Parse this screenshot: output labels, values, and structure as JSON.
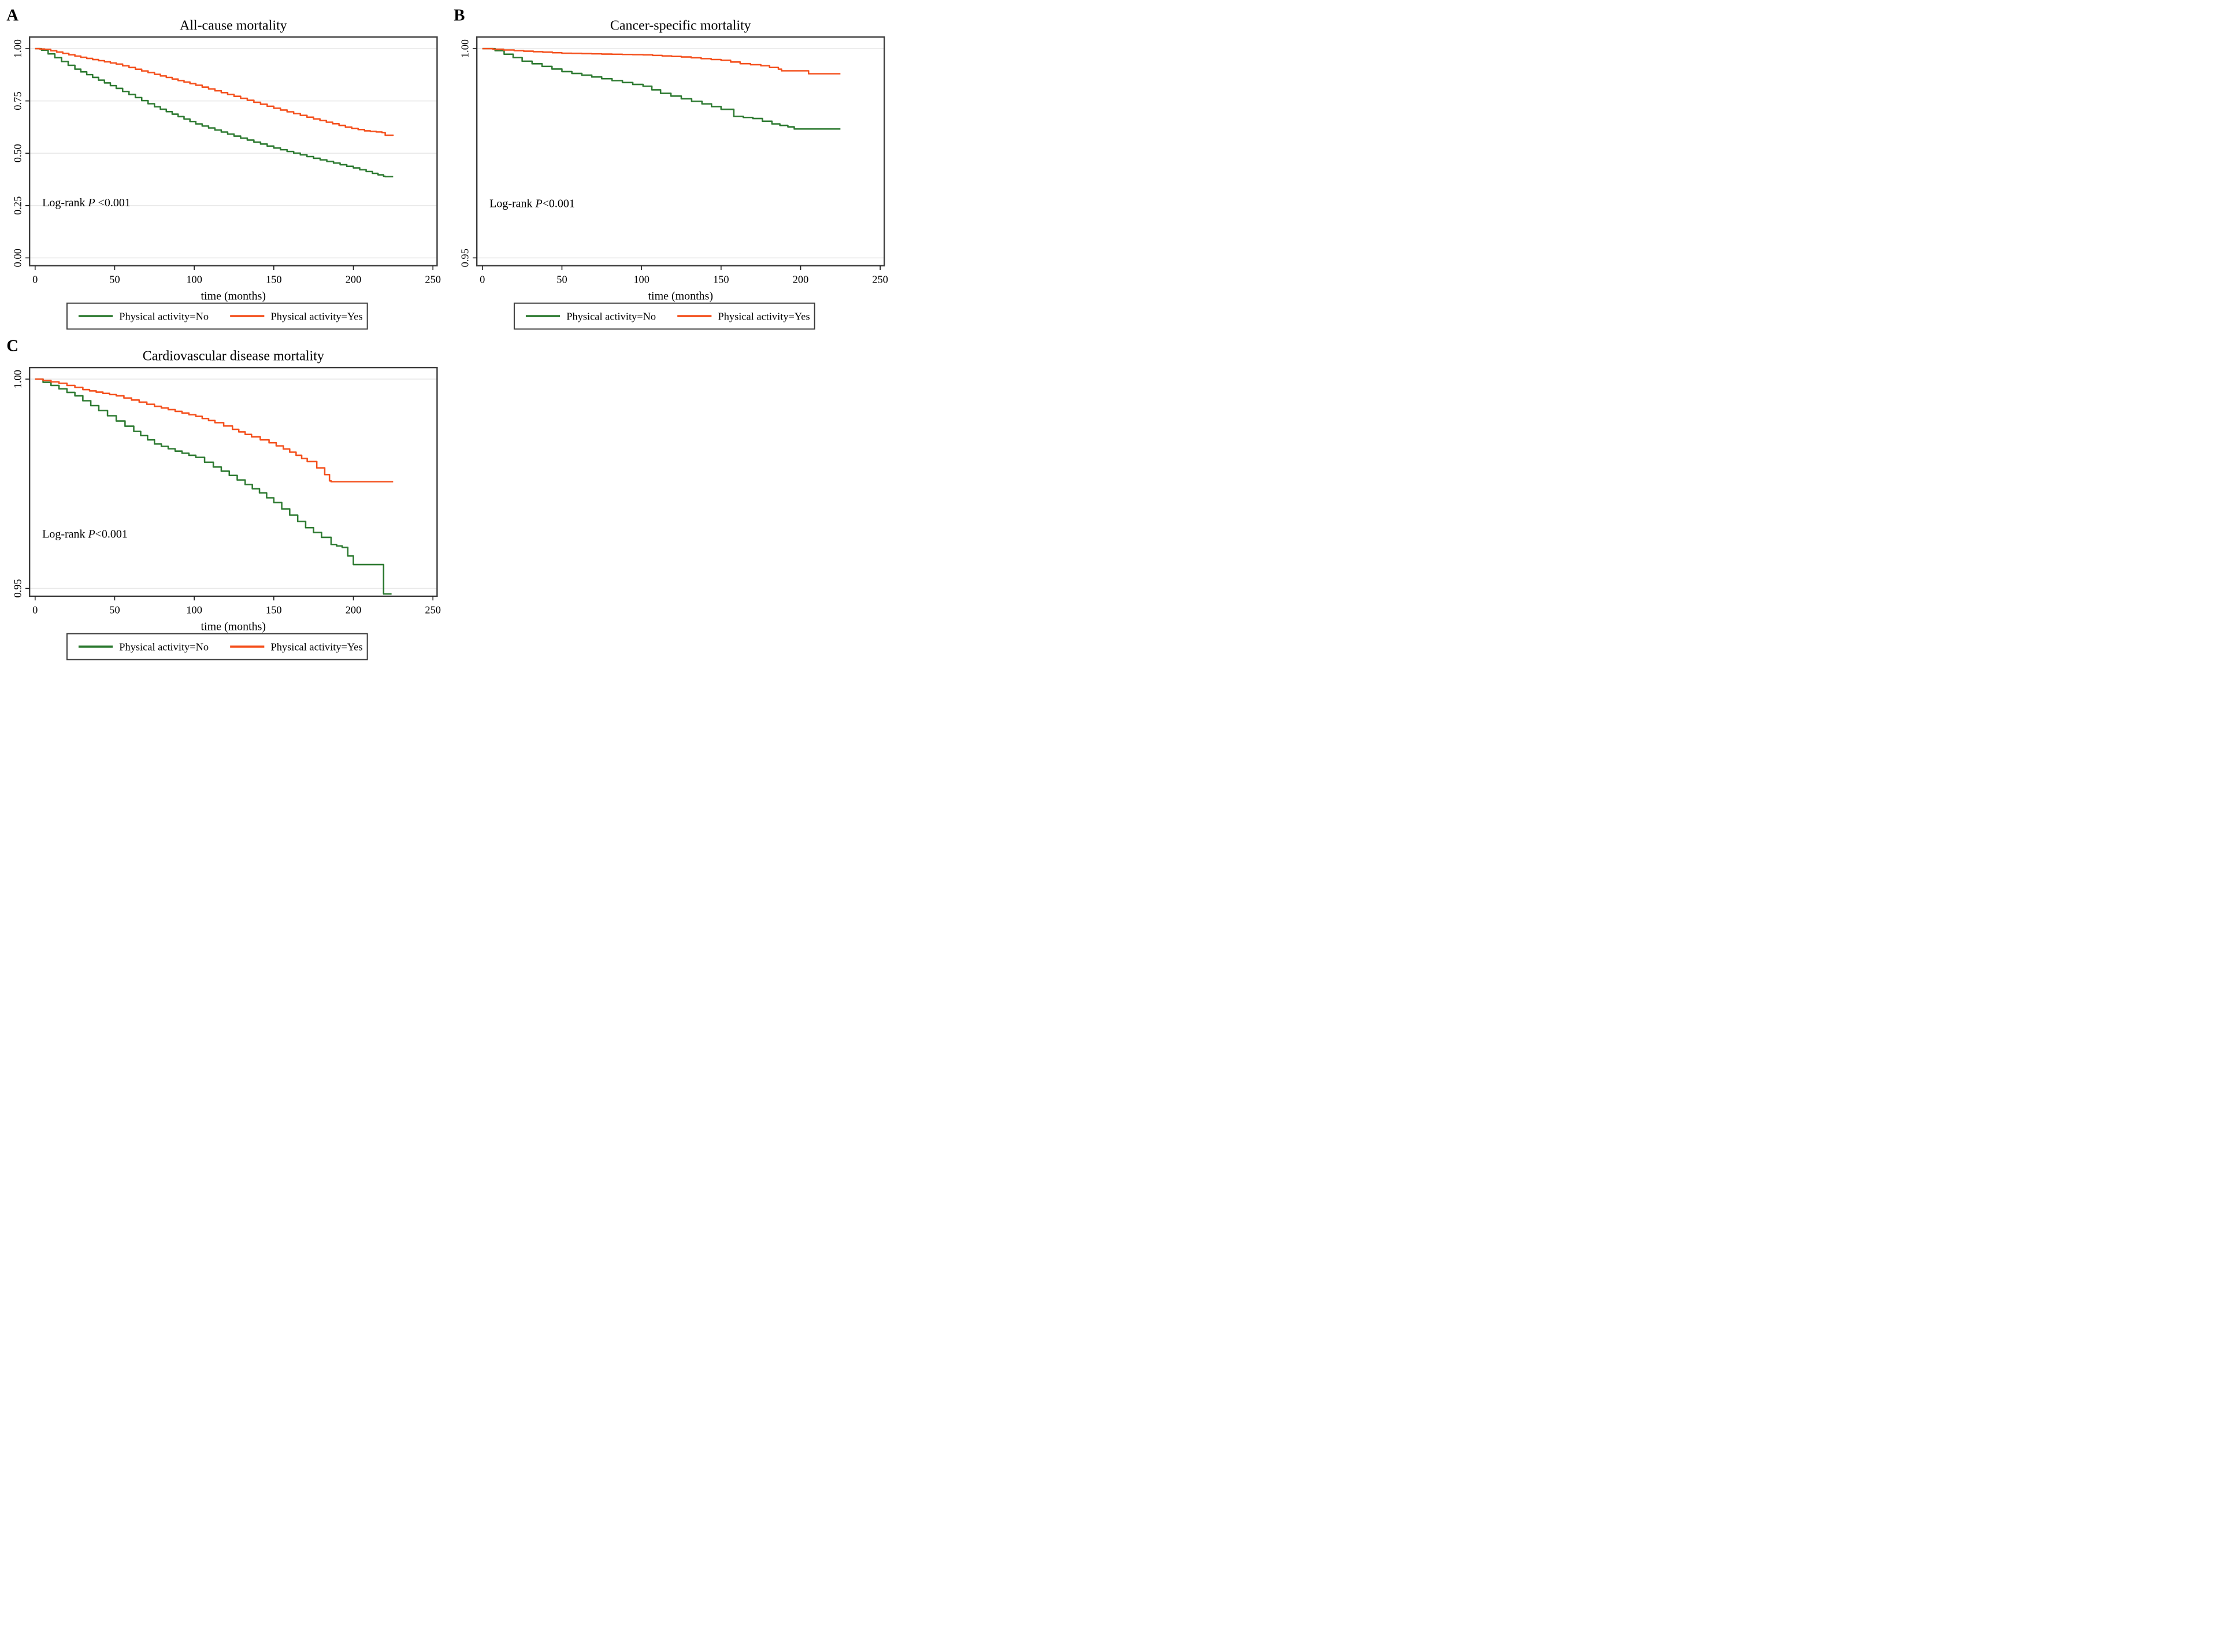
{
  "figure": {
    "background": "#ffffff",
    "colors": {
      "no": "#2d7a31",
      "yes": "#f4501d",
      "grid": "#e9e9e9",
      "frame": "#3c3c3c"
    }
  },
  "chart_data": [
    {
      "letter": "A",
      "type": "step",
      "title": "All-cause mortality",
      "xlabel": "time (months)",
      "xlim": [
        0,
        250
      ],
      "ylim": [
        0,
        1
      ],
      "xticks": [
        {
          "v": 0,
          "label": "0"
        },
        {
          "v": 50,
          "label": "50"
        },
        {
          "v": 100,
          "label": "100"
        },
        {
          "v": 150,
          "label": "150"
        },
        {
          "v": 200,
          "label": "200"
        },
        {
          "v": 250,
          "label": "250"
        }
      ],
      "yticks": [
        {
          "v": 0.0,
          "label": "0.00",
          "grid": true
        },
        {
          "v": 0.25,
          "label": "0.25",
          "grid": true
        },
        {
          "v": 0.5,
          "label": "0.50",
          "grid": true
        },
        {
          "v": 0.75,
          "label": "0.75",
          "grid": true
        },
        {
          "v": 1.0,
          "label": "1.00",
          "grid": true
        }
      ],
      "annotation": {
        "prefix": "Log-rank ",
        "italic": "P",
        "suffix": " <0.001",
        "t": 4.5,
        "v": 0.247
      },
      "step_months": 4,
      "legend_position": "bottom",
      "series": [
        {
          "name": "Physical activity=No",
          "color_key": "no",
          "points": [
            [
              0,
              1.0
            ],
            [
              4,
              0.993
            ],
            [
              25,
              0.902
            ],
            [
              51,
              0.81
            ],
            [
              75,
              0.722
            ],
            [
              101,
              0.64
            ],
            [
              125,
              0.582
            ],
            [
              150,
              0.525
            ],
            [
              175,
              0.476
            ],
            [
              200,
              0.43
            ],
            [
              212,
              0.404
            ],
            [
              219,
              0.39
            ],
            [
              220,
              0.388
            ],
            [
              225,
              0.388
            ]
          ]
        },
        {
          "name": "Physical activity=Yes",
          "color_key": "yes",
          "points": [
            [
              0,
              1.0
            ],
            [
              6,
              0.996
            ],
            [
              25,
              0.964
            ],
            [
              51,
              0.926
            ],
            [
              75,
              0.877
            ],
            [
              101,
              0.825
            ],
            [
              125,
              0.772
            ],
            [
              150,
              0.715
            ],
            [
              175,
              0.664
            ],
            [
              195,
              0.625
            ],
            [
              207,
              0.607
            ],
            [
              218,
              0.599
            ],
            [
              220,
              0.586
            ],
            [
              225,
              0.584
            ]
          ]
        }
      ]
    },
    {
      "letter": "B",
      "type": "step",
      "title": "Cancer-specific mortality",
      "xlabel": "time (months)",
      "xlim": [
        0,
        250
      ],
      "ylim": [
        0.95,
        1.0
      ],
      "xticks": [
        {
          "v": 0,
          "label": "0"
        },
        {
          "v": 50,
          "label": "50"
        },
        {
          "v": 100,
          "label": "100"
        },
        {
          "v": 150,
          "label": "150"
        },
        {
          "v": 200,
          "label": "200"
        },
        {
          "v": 250,
          "label": "250"
        }
      ],
      "yticks": [
        {
          "v": 0.95,
          "label": "0.95",
          "grid": true
        },
        {
          "v": 1.0,
          "label": "1.00",
          "grid": true
        }
      ],
      "annotation": {
        "prefix": "Log-rank ",
        "italic": "P",
        "suffix": "<0.001",
        "t": 4.5,
        "v": 0.9621
      },
      "step_months": 6,
      "legend_position": "bottom",
      "series": [
        {
          "name": "Physical activity=No",
          "color_key": "no",
          "points": [
            [
              0,
              1.0
            ],
            [
              8,
              0.9995
            ],
            [
              25,
              0.997
            ],
            [
              50,
              0.9945
            ],
            [
              75,
              0.9928
            ],
            [
              101,
              0.991
            ],
            [
              112,
              0.9893
            ],
            [
              125,
              0.988
            ],
            [
              138,
              0.9868
            ],
            [
              150,
              0.9855
            ],
            [
              158,
              0.9838
            ],
            [
              170,
              0.9833
            ],
            [
              182,
              0.982
            ],
            [
              192,
              0.9813
            ],
            [
              196,
              0.9808
            ],
            [
              225,
              0.9808
            ]
          ]
        },
        {
          "name": "Physical activity=Yes",
          "color_key": "yes",
          "points": [
            [
              0,
              1.0
            ],
            [
              20,
              0.9995
            ],
            [
              50,
              0.9989
            ],
            [
              75,
              0.9987
            ],
            [
              101,
              0.9985
            ],
            [
              125,
              0.998
            ],
            [
              150,
              0.9972
            ],
            [
              162,
              0.9964
            ],
            [
              175,
              0.9959
            ],
            [
              186,
              0.9951
            ],
            [
              188,
              0.9947
            ],
            [
              204,
              0.9947
            ],
            [
              205,
              0.994
            ],
            [
              225,
              0.994
            ]
          ]
        }
      ]
    },
    {
      "letter": "C",
      "type": "step",
      "title": "Cardiovascular disease mortality",
      "xlabel": "time (months)",
      "xlim": [
        0,
        250
      ],
      "ylim": [
        0.95,
        1.0
      ],
      "xticks": [
        {
          "v": 0,
          "label": "0"
        },
        {
          "v": 50,
          "label": "50"
        },
        {
          "v": 100,
          "label": "100"
        },
        {
          "v": 150,
          "label": "150"
        },
        {
          "v": 200,
          "label": "200"
        },
        {
          "v": 250,
          "label": "250"
        }
      ],
      "yticks": [
        {
          "v": 0.95,
          "label": "0.95",
          "grid": true
        },
        {
          "v": 1.0,
          "label": "1.00",
          "grid": true
        }
      ],
      "annotation": {
        "prefix": "Log-rank ",
        "italic": "P",
        "suffix": "<0.001",
        "t": 4.5,
        "v": 0.9621
      },
      "step_months": 4.5,
      "legend_position": "bottom",
      "series": [
        {
          "name": "Physical activity=No",
          "color_key": "no",
          "points": [
            [
              0,
              1.0
            ],
            [
              10,
              0.9985
            ],
            [
              25,
              0.996
            ],
            [
              40,
              0.9925
            ],
            [
              51,
              0.99
            ],
            [
              62,
              0.9875
            ],
            [
              75,
              0.9845
            ],
            [
              88,
              0.9828
            ],
            [
              101,
              0.9813
            ],
            [
              112,
              0.979
            ],
            [
              122,
              0.977
            ],
            [
              132,
              0.9748
            ],
            [
              141,
              0.9728
            ],
            [
              150,
              0.9705
            ],
            [
              160,
              0.9675
            ],
            [
              170,
              0.9645
            ],
            [
              180,
              0.9622
            ],
            [
              186,
              0.9605
            ],
            [
              193,
              0.9598
            ],
            [
              200,
              0.9557
            ],
            [
              218,
              0.9557
            ],
            [
              219,
              0.9487
            ],
            [
              224,
              0.9487
            ]
          ]
        },
        {
          "name": "Physical activity=Yes",
          "color_key": "yes",
          "points": [
            [
              0,
              1.0
            ],
            [
              15,
              0.999
            ],
            [
              30,
              0.9975
            ],
            [
              51,
              0.996
            ],
            [
              75,
              0.9935
            ],
            [
              101,
              0.9911
            ],
            [
              113,
              0.9896
            ],
            [
              124,
              0.988
            ],
            [
              136,
              0.9862
            ],
            [
              147,
              0.9848
            ],
            [
              156,
              0.9833
            ],
            [
              164,
              0.9818
            ],
            [
              171,
              0.9803
            ],
            [
              177,
              0.9788
            ],
            [
              182,
              0.9772
            ],
            [
              185,
              0.9757
            ],
            [
              186,
              0.9755
            ],
            [
              225,
              0.9755
            ]
          ]
        }
      ]
    }
  ]
}
